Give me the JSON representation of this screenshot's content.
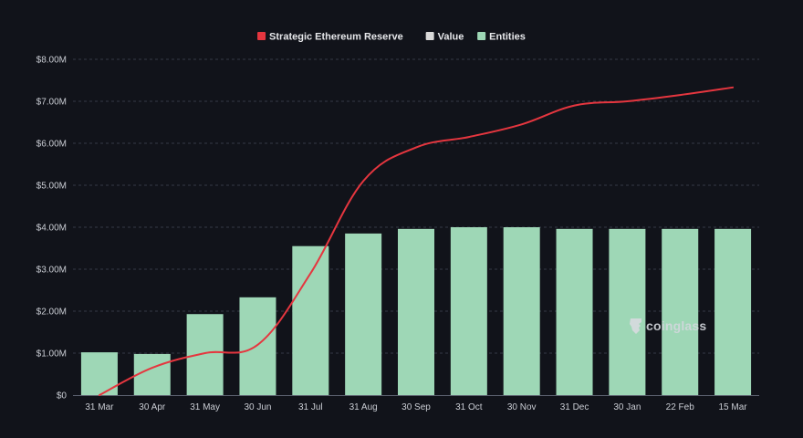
{
  "chart_data": {
    "type": "bar",
    "x_labels": [
      "31 Mar",
      "30 Apr",
      "31 May",
      "30 Jun",
      "31 Jul",
      "31 Aug",
      "30 Sep",
      "31 Oct",
      "30 Nov",
      "31 Dec",
      "30 Jan",
      "22 Feb",
      "15 Mar"
    ],
    "ylim": [
      0,
      8000000
    ],
    "y_ticks": [
      0,
      1000000,
      2000000,
      3000000,
      4000000,
      5000000,
      6000000,
      7000000,
      8000000
    ],
    "y_tick_labels": [
      "$0",
      "$1.00M",
      "$2.00M",
      "$3.00M",
      "$4.00M",
      "$5.00M",
      "$6.00M",
      "$7.00M",
      "$8.00M"
    ],
    "grid": true,
    "legend_position": "top-center",
    "legend": [
      {
        "name": "Strategic Ethereum Reserve",
        "color": "#e5363f"
      },
      {
        "name": "Value",
        "color": "#d9d9d9"
      },
      {
        "name": "Entities",
        "color": "#9ed7b6"
      }
    ],
    "series": [
      {
        "name": "Entities",
        "type": "bar",
        "color": "#9ed7b6",
        "values": [
          1020000,
          980000,
          1930000,
          2330000,
          3550000,
          3850000,
          3960000,
          4000000,
          4000000,
          3960000,
          3960000,
          3960000,
          3960000
        ]
      },
      {
        "name": "Strategic Ethereum Reserve",
        "type": "line",
        "color": "#e5363f",
        "values": [
          0,
          650000,
          1000000,
          1200000,
          2900000,
          5100000,
          5900000,
          6150000,
          6450000,
          6900000,
          7000000,
          7150000,
          7330000
        ]
      }
    ]
  },
  "watermark": {
    "text": "coinglass"
  },
  "colors": {
    "background": "#11131a",
    "grid": "#353946",
    "axis": "#5d6270"
  }
}
